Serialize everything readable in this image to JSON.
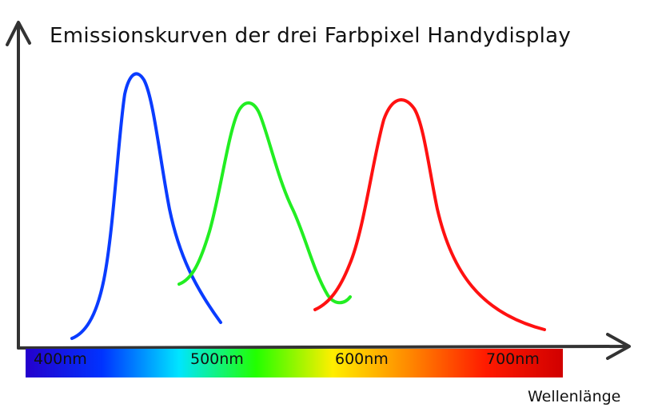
{
  "title": "Emissionskurven der drei Farbpixel Handydisplay",
  "x_axis_label": "Wellenlänge",
  "spectrum": {
    "stops": [
      "#2400cc",
      "#0033ff",
      "#00e5ff",
      "#22ff00",
      "#ffee00",
      "#ff8800",
      "#ff1a00",
      "#d10000"
    ],
    "ticks": [
      "400nm",
      "500nm",
      "600nm",
      "700nm"
    ]
  },
  "curves": [
    {
      "name": "blue",
      "color": "#0a3cff"
    },
    {
      "name": "green",
      "color": "#22ee22"
    },
    {
      "name": "red",
      "color": "#ff1111"
    }
  ]
}
